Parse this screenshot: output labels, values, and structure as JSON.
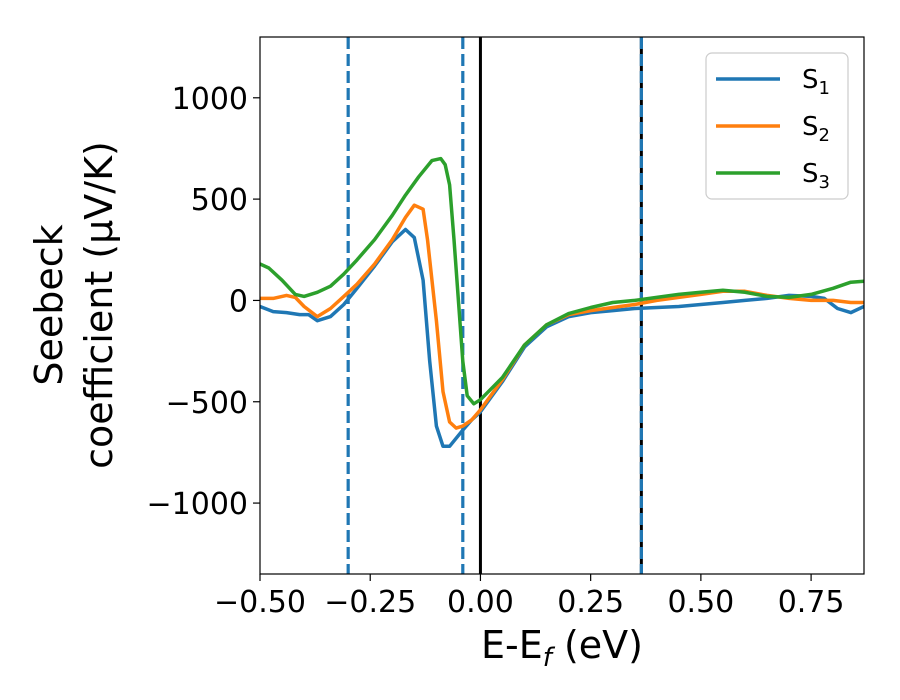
{
  "chart_data": {
    "type": "line",
    "xlabel": "E-E",
    "xlabel_sub": "f",
    "xlabel_unit": " (eV)",
    "ylabel_line1": "Seebeck",
    "ylabel_line2": "coefficient  (μV/K)",
    "xlim": [
      -0.5,
      0.87
    ],
    "ylim": [
      -1350,
      1300
    ],
    "xticks": [
      -0.5,
      -0.25,
      0.0,
      0.25,
      0.5,
      0.75
    ],
    "xtick_labels": [
      "−0.50",
      "−0.25",
      "0.00",
      "0.25",
      "0.50",
      "0.75"
    ],
    "yticks": [
      1000,
      500,
      0,
      -500,
      -1000
    ],
    "ytick_labels": [
      "1000",
      "500",
      "0",
      "−500",
      "−1000"
    ],
    "legend_position": "top-right",
    "grid": false,
    "series": [
      {
        "name": "S",
        "sub": "1",
        "color": "#1f77b4",
        "x": [
          -0.5,
          -0.47,
          -0.44,
          -0.41,
          -0.39,
          -0.37,
          -0.34,
          -0.31,
          -0.28,
          -0.24,
          -0.2,
          -0.17,
          -0.15,
          -0.13,
          -0.115,
          -0.1,
          -0.085,
          -0.07,
          -0.055,
          -0.04,
          -0.02,
          0.0,
          0.05,
          0.1,
          0.15,
          0.2,
          0.25,
          0.3,
          0.35,
          0.4,
          0.45,
          0.5,
          0.55,
          0.6,
          0.65,
          0.7,
          0.75,
          0.78,
          0.81,
          0.84,
          0.87
        ],
        "y": [
          -30,
          -55,
          -60,
          -70,
          -70,
          -100,
          -80,
          -20,
          60,
          170,
          290,
          350,
          310,
          100,
          -300,
          -620,
          -720,
          -720,
          -680,
          -640,
          -590,
          -550,
          -400,
          -230,
          -130,
          -80,
          -60,
          -50,
          -40,
          -35,
          -30,
          -20,
          -10,
          0,
          10,
          25,
          20,
          10,
          -40,
          -60,
          -30
        ]
      },
      {
        "name": "S",
        "sub": "2",
        "color": "#ff7f0e",
        "x": [
          -0.5,
          -0.47,
          -0.44,
          -0.42,
          -0.4,
          -0.37,
          -0.34,
          -0.31,
          -0.28,
          -0.24,
          -0.2,
          -0.17,
          -0.15,
          -0.13,
          -0.12,
          -0.1,
          -0.085,
          -0.07,
          -0.055,
          -0.04,
          -0.02,
          0.0,
          0.05,
          0.1,
          0.15,
          0.2,
          0.25,
          0.3,
          0.35,
          0.4,
          0.45,
          0.5,
          0.55,
          0.6,
          0.65,
          0.7,
          0.75,
          0.8,
          0.84,
          0.87
        ],
        "y": [
          10,
          10,
          25,
          15,
          -30,
          -80,
          -40,
          20,
          80,
          180,
          300,
          410,
          470,
          450,
          300,
          -100,
          -450,
          -600,
          -630,
          -620,
          -590,
          -540,
          -390,
          -220,
          -120,
          -70,
          -50,
          -35,
          -20,
          0,
          15,
          30,
          45,
          45,
          25,
          10,
          0,
          0,
          -10,
          -10
        ]
      },
      {
        "name": "S",
        "sub": "3",
        "color": "#2ca02c",
        "x": [
          -0.5,
          -0.48,
          -0.45,
          -0.42,
          -0.4,
          -0.37,
          -0.34,
          -0.31,
          -0.28,
          -0.24,
          -0.2,
          -0.17,
          -0.14,
          -0.11,
          -0.09,
          -0.08,
          -0.07,
          -0.06,
          -0.05,
          -0.04,
          -0.03,
          -0.015,
          0.0,
          0.05,
          0.1,
          0.15,
          0.2,
          0.25,
          0.3,
          0.35,
          0.4,
          0.45,
          0.5,
          0.55,
          0.6,
          0.65,
          0.7,
          0.75,
          0.8,
          0.84,
          0.87
        ],
        "y": [
          180,
          160,
          100,
          30,
          20,
          40,
          70,
          130,
          200,
          300,
          420,
          520,
          610,
          690,
          700,
          670,
          570,
          300,
          0,
          -300,
          -470,
          -510,
          -490,
          -380,
          -220,
          -120,
          -65,
          -35,
          -10,
          0,
          15,
          30,
          40,
          50,
          40,
          20,
          15,
          30,
          60,
          90,
          95
        ]
      }
    ],
    "vlines": [
      {
        "x": -0.3,
        "style": "dashed",
        "color": "#1f77b4"
      },
      {
        "x": -0.04,
        "style": "dashed",
        "color": "#1f77b4"
      },
      {
        "x": 0.0,
        "style": "solid",
        "color": "#000000"
      },
      {
        "x": 0.365,
        "style": "solid",
        "color": "#000000"
      },
      {
        "x": 0.365,
        "style": "dashed",
        "color": "#1f77b4"
      }
    ]
  }
}
